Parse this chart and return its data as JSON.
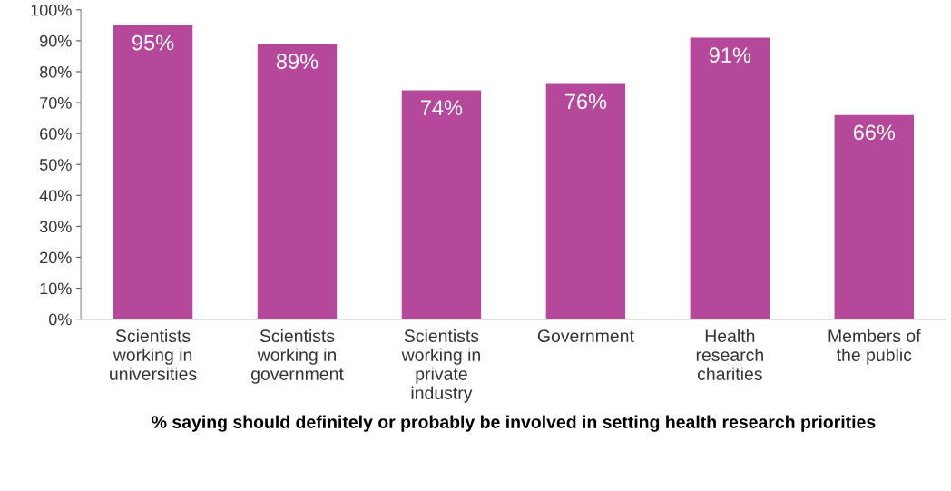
{
  "chart_data": {
    "type": "bar",
    "xlabel": "% saying should definitely or probably be involved in setting health research priorities",
    "categories": [
      "Scientists\nworking in\nuniversities",
      "Scientists\nworking in\ngovernment",
      "Scientists\nworking in\nprivate\nindustry",
      "Government",
      "Health\nresearch\ncharities",
      "Members of\nthe public"
    ],
    "values": [
      95,
      89,
      74,
      76,
      91,
      66
    ],
    "value_labels": [
      "95%",
      "89%",
      "74%",
      "76%",
      "91%",
      "66%"
    ],
    "color": "#b5489b",
    "ylim": [
      0,
      100
    ],
    "yticks": [
      {
        "value": 0,
        "label": "0%"
      },
      {
        "value": 10,
        "label": "10%"
      },
      {
        "value": 20,
        "label": "20%"
      },
      {
        "value": 30,
        "label": "30%"
      },
      {
        "value": 40,
        "label": "40%"
      },
      {
        "value": 50,
        "label": "50%"
      },
      {
        "value": 60,
        "label": "60%"
      },
      {
        "value": 70,
        "label": "70%"
      },
      {
        "value": 80,
        "label": "80%"
      },
      {
        "value": 90,
        "label": "90%"
      },
      {
        "value": 100,
        "label": "100%"
      }
    ],
    "grid": false,
    "legend": false
  }
}
